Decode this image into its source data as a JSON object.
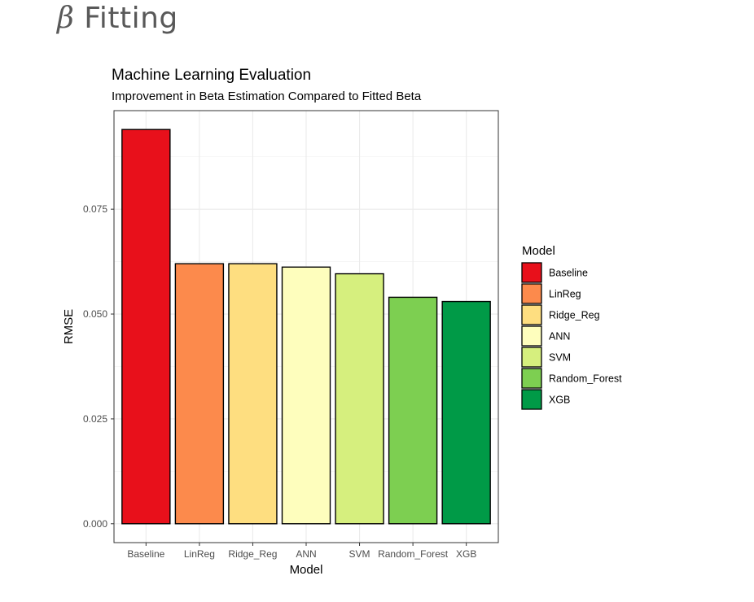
{
  "slide": {
    "title_symbol": "β",
    "title_text": "Fitting"
  },
  "chart_data": {
    "type": "bar",
    "title": "Machine Learning Evaluation",
    "subtitle": "Improvement in Beta Estimation Compared to Fitted Beta",
    "xlabel": "Model",
    "ylabel": "RMSE",
    "categories": [
      "Baseline",
      "LinReg",
      "Ridge_Reg",
      "ANN",
      "SVM",
      "Random_Forest",
      "XGB"
    ],
    "values": [
      0.094,
      0.062,
      0.062,
      0.0612,
      0.0596,
      0.054,
      0.053
    ],
    "colors": [
      "#e8101b",
      "#fc8a4c",
      "#fede80",
      "#fefebd",
      "#d6ef7e",
      "#7dcf51",
      "#009a47"
    ],
    "ylim": [
      -0.0045,
      0.0985
    ],
    "yticks": [
      0.0,
      0.025,
      0.05,
      0.075
    ],
    "ytick_labels": [
      "0.000",
      "0.025",
      "0.050",
      "0.075"
    ],
    "grid": true,
    "legend": {
      "title": "Model",
      "position": "right",
      "entries": [
        "Baseline",
        "LinReg",
        "Ridge_Reg",
        "ANN",
        "SVM",
        "Random_Forest",
        "XGB"
      ]
    }
  }
}
